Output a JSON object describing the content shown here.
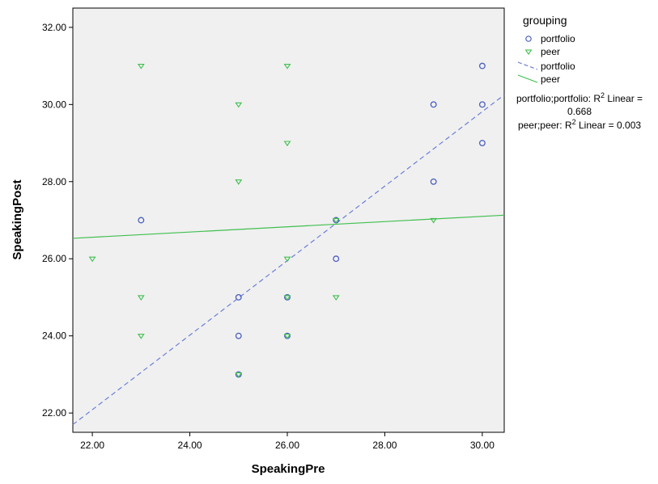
{
  "chart_data": {
    "type": "scatter",
    "xlabel": "SpeakingPre",
    "ylabel": "SpeakingPost",
    "xlim": [
      21.6,
      30.45
    ],
    "ylim": [
      21.5,
      32.5
    ],
    "xticks": [
      22,
      24,
      26,
      28,
      30
    ],
    "yticks": [
      22,
      24,
      26,
      28,
      30,
      32
    ],
    "xtick_labels": [
      "22.00",
      "24.00",
      "26.00",
      "28.00",
      "30.00"
    ],
    "ytick_labels": [
      "22.00",
      "24.00",
      "26.00",
      "28.00",
      "30.00",
      "32.00"
    ],
    "grid": false,
    "background": "#f0f0f0",
    "legend": {
      "title": "grouping",
      "position": "right",
      "marker_entries": [
        {
          "label": "portfolio",
          "marker": "circle",
          "color": "#4a5fbf"
        },
        {
          "label": "peer",
          "marker": "triangle-down",
          "color": "#3fbf4f"
        }
      ],
      "line_entries": [
        {
          "label": "portfolio",
          "style": "dashed",
          "color": "#6b7fd6"
        },
        {
          "label": "peer",
          "style": "solid",
          "color": "#3fbf4f"
        }
      ]
    },
    "series": [
      {
        "name": "portfolio",
        "marker": "circle",
        "color": "#4a5fbf",
        "points": [
          {
            "x": 23,
            "y": 27
          },
          {
            "x": 25,
            "y": 25
          },
          {
            "x": 25,
            "y": 24
          },
          {
            "x": 25,
            "y": 23
          },
          {
            "x": 26,
            "y": 25
          },
          {
            "x": 26,
            "y": 24
          },
          {
            "x": 27,
            "y": 27
          },
          {
            "x": 27,
            "y": 26
          },
          {
            "x": 29,
            "y": 30
          },
          {
            "x": 29,
            "y": 28
          },
          {
            "x": 30,
            "y": 31
          },
          {
            "x": 30,
            "y": 30
          },
          {
            "x": 30,
            "y": 29
          }
        ]
      },
      {
        "name": "peer",
        "marker": "triangle-down",
        "color": "#3fbf4f",
        "points": [
          {
            "x": 22,
            "y": 26
          },
          {
            "x": 23,
            "y": 31
          },
          {
            "x": 23,
            "y": 25
          },
          {
            "x": 23,
            "y": 24
          },
          {
            "x": 25,
            "y": 30
          },
          {
            "x": 25,
            "y": 28
          },
          {
            "x": 25,
            "y": 23
          },
          {
            "x": 26,
            "y": 31
          },
          {
            "x": 26,
            "y": 29
          },
          {
            "x": 26,
            "y": 26
          },
          {
            "x": 26,
            "y": 25
          },
          {
            "x": 26,
            "y": 24
          },
          {
            "x": 27,
            "y": 27
          },
          {
            "x": 27,
            "y": 25
          },
          {
            "x": 29,
            "y": 27
          }
        ]
      }
    ],
    "fit_lines": [
      {
        "name": "portfolio",
        "style": "dashed",
        "color": "#6b7fd6",
        "x0": 21.6,
        "y0": 21.7,
        "x1": 30.45,
        "y1": 30.25
      },
      {
        "name": "peer",
        "style": "solid",
        "color": "#3fbf4f",
        "x0": 21.6,
        "y0": 26.53,
        "x1": 30.45,
        "y1": 27.13
      }
    ],
    "annotations": {
      "line1_pre": "portfolio;portfolio: R",
      "line1_sup": "2",
      "line1_post": " Linear =",
      "line2": "0.668",
      "line3_pre": "peer;peer: R",
      "line3_sup": "2",
      "line3_post": " Linear = 0.003"
    }
  }
}
